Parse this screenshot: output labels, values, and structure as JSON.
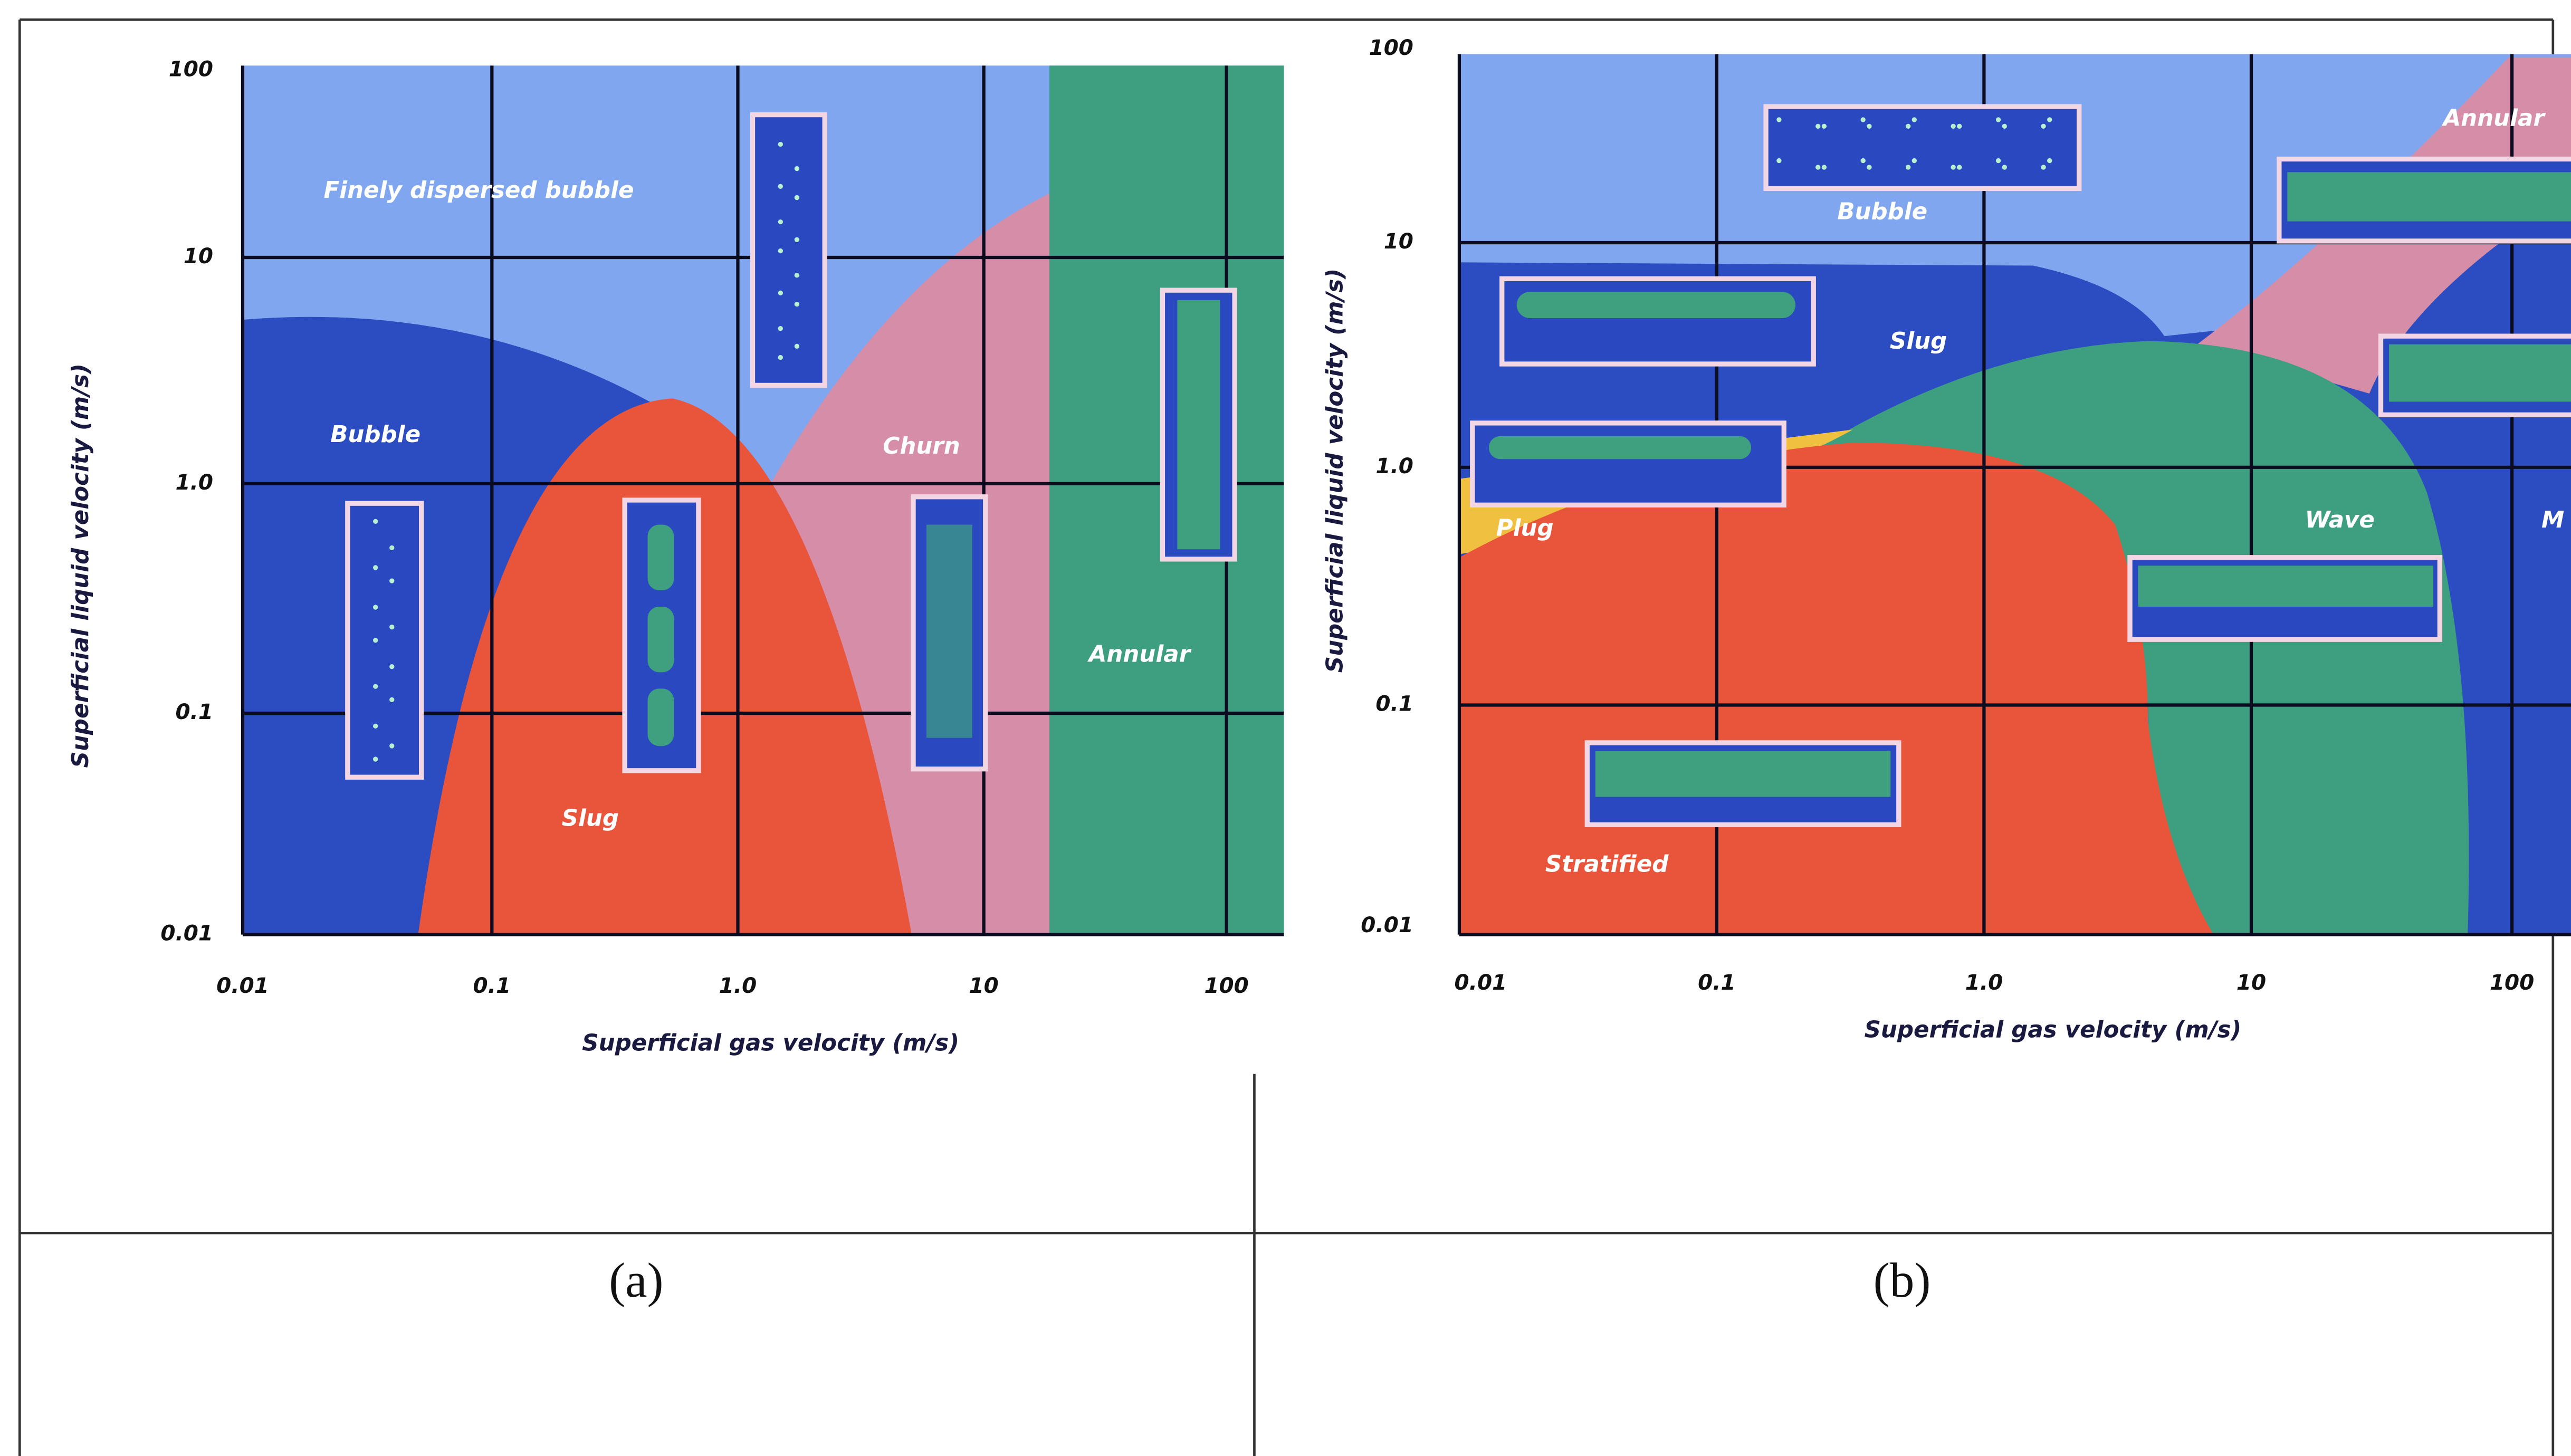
{
  "panels": [
    {
      "caption": "(a)",
      "x_axis_label": "Superficial gas velocity (m/s)",
      "y_axis_label": "Superficial liquid velocity (m/s)",
      "xticks": [
        "0.01",
        "0.1",
        "1.0",
        "10",
        "100"
      ],
      "yticks": [
        "100",
        "10",
        "1.0",
        "0.1",
        "0.01"
      ],
      "regions": [
        "Finely dispersed bubble",
        "Bubble",
        "Slug",
        "Churn",
        "Annular"
      ]
    },
    {
      "caption": "(b)",
      "x_axis_label": "Superficial gas velocity (m/s)",
      "y_axis_label": "Superficial liquid velocity (m/s)",
      "xticks": [
        "0.01",
        "0.1",
        "1.0",
        "10",
        "100"
      ],
      "yticks": [
        "100",
        "10",
        "1.0",
        "0.1",
        "0.01"
      ],
      "regions": [
        "Bubble",
        "Slug",
        "Plug",
        "Wave",
        "Stratified",
        "Annular",
        "M"
      ]
    }
  ]
}
